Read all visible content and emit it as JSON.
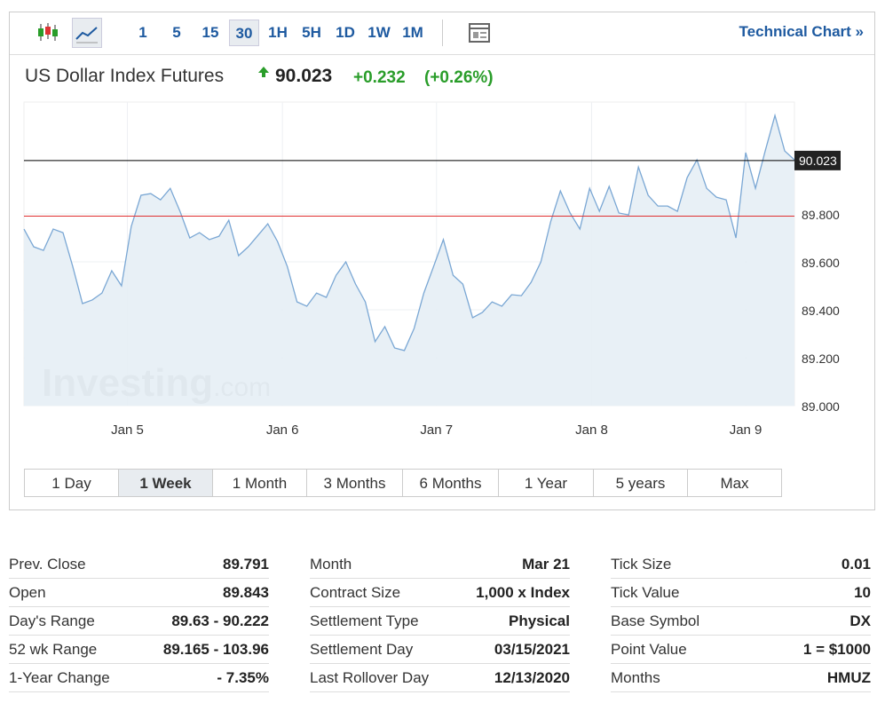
{
  "toolbar": {
    "intervals": [
      "1",
      "5",
      "15",
      "30",
      "1H",
      "5H",
      "1D",
      "1W",
      "1M"
    ],
    "active": 3,
    "link": "Technical Chart »"
  },
  "header": {
    "title": "US Dollar Index Futures",
    "price": "90.023",
    "change": "+0.232",
    "change_pct": "(+0.26%)"
  },
  "chart_data": {
    "type": "line",
    "watermark": [
      "Investing",
      ".com"
    ],
    "values": [
      89.737,
      89.663,
      89.648,
      89.737,
      89.722,
      89.581,
      89.426,
      89.441,
      89.47,
      89.563,
      89.5,
      89.748,
      89.878,
      89.885,
      89.859,
      89.907,
      89.811,
      89.7,
      89.722,
      89.693,
      89.707,
      89.774,
      89.626,
      89.663,
      89.711,
      89.759,
      89.685,
      89.581,
      89.433,
      89.415,
      89.47,
      89.452,
      89.544,
      89.6,
      89.507,
      89.433,
      89.267,
      89.33,
      89.241,
      89.23,
      89.322,
      89.47,
      89.581,
      89.693,
      89.544,
      89.507,
      89.367,
      89.389,
      89.433,
      89.415,
      89.463,
      89.459,
      89.515,
      89.6,
      89.767,
      89.896,
      89.804,
      89.737,
      89.907,
      89.811,
      89.915,
      89.804,
      89.796,
      89.996,
      89.878,
      89.833,
      89.833,
      89.811,
      89.952,
      90.026,
      89.907,
      89.87,
      89.859,
      89.7,
      90.056,
      89.907,
      90.063,
      90.211,
      90.063,
      90.026
    ],
    "color": "#7aa7d4",
    "fill": "#e6eef5",
    "xlim": [
      0,
      79
    ],
    "xticks": [
      {
        "value": 10.6,
        "label": "Jan 5"
      },
      {
        "value": 26.5,
        "label": "Jan 6"
      },
      {
        "value": 42.3,
        "label": "Jan 7"
      },
      {
        "value": 58.2,
        "label": "Jan 8"
      },
      {
        "value": 74,
        "label": "Jan 9"
      }
    ],
    "ylim": [
      89.0,
      90.267
    ],
    "yticks": [
      {
        "value": 89.0,
        "label": "89.000"
      },
      {
        "value": 89.2,
        "label": "89.200"
      },
      {
        "value": 89.4,
        "label": "89.400"
      },
      {
        "value": 89.6,
        "label": "89.600"
      },
      {
        "value": 89.8,
        "label": "89.800"
      }
    ],
    "grid": true,
    "reference_lines": [
      {
        "value": 90.023,
        "color": "#000000",
        "labeled": true
      },
      {
        "value": 89.791,
        "color": "#e03030",
        "labeled": false
      }
    ]
  },
  "ranges": {
    "items": [
      "1 Day",
      "1 Week",
      "1 Month",
      "3 Months",
      "6 Months",
      "1 Year",
      "5 years",
      "Max"
    ],
    "active": 1
  },
  "stats": [
    [
      [
        "Prev. Close",
        "89.791"
      ],
      [
        "Open",
        "89.843"
      ],
      [
        "Day's Range",
        "89.63 - 90.222"
      ],
      [
        "52 wk Range",
        "89.165 - 103.96"
      ],
      [
        "1-Year Change",
        "- 7.35%"
      ]
    ],
    [
      [
        "Month",
        "Mar 21"
      ],
      [
        "Contract Size",
        "1,000 x Index"
      ],
      [
        "Settlement Type",
        "Physical"
      ],
      [
        "Settlement Day",
        "03/15/2021"
      ],
      [
        "Last Rollover Day",
        "12/13/2020"
      ]
    ],
    [
      [
        "Tick Size",
        "0.01"
      ],
      [
        "Tick Value",
        "10"
      ],
      [
        "Base Symbol",
        "DX"
      ],
      [
        "Point Value",
        "1 = $1000"
      ],
      [
        "Months",
        "HMUZ"
      ]
    ]
  ]
}
